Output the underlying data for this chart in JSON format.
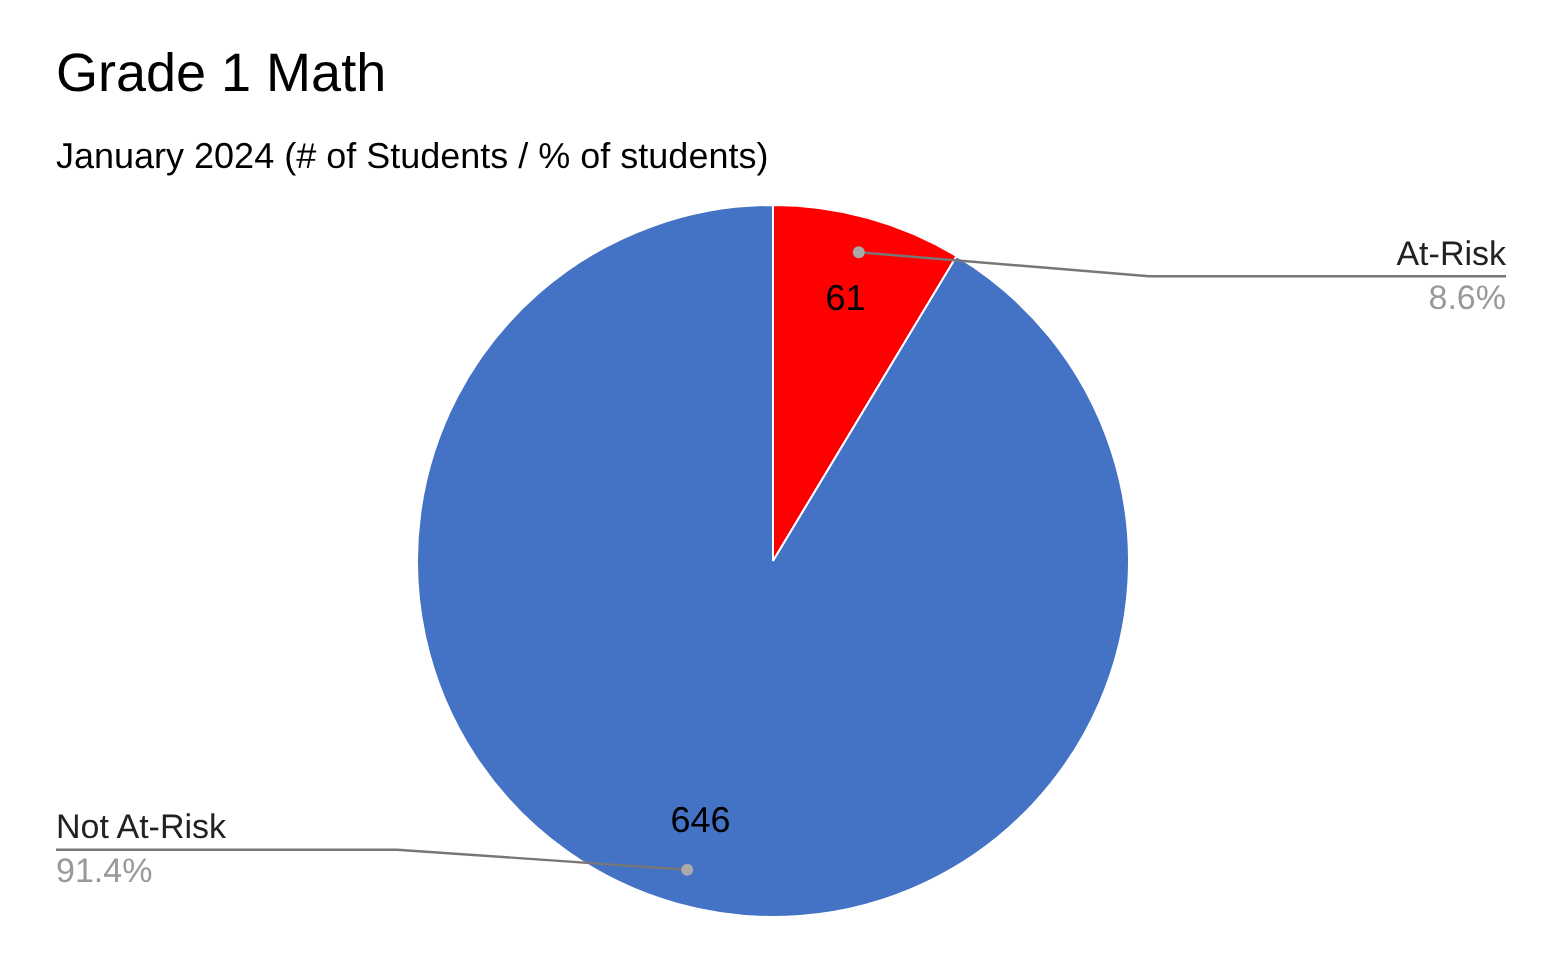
{
  "chart_data": {
    "type": "pie",
    "title": "Grade 1 Math",
    "subtitle": "January 2024 (# of Students / % of students)",
    "categories": [
      "At-Risk",
      "Not At-Risk"
    ],
    "values": [
      61,
      646
    ],
    "colors": [
      "#ff0000",
      "#4472c4"
    ],
    "data_labels": true,
    "annotations": [
      "8.6%",
      "91.4%"
    ],
    "legend": false
  }
}
